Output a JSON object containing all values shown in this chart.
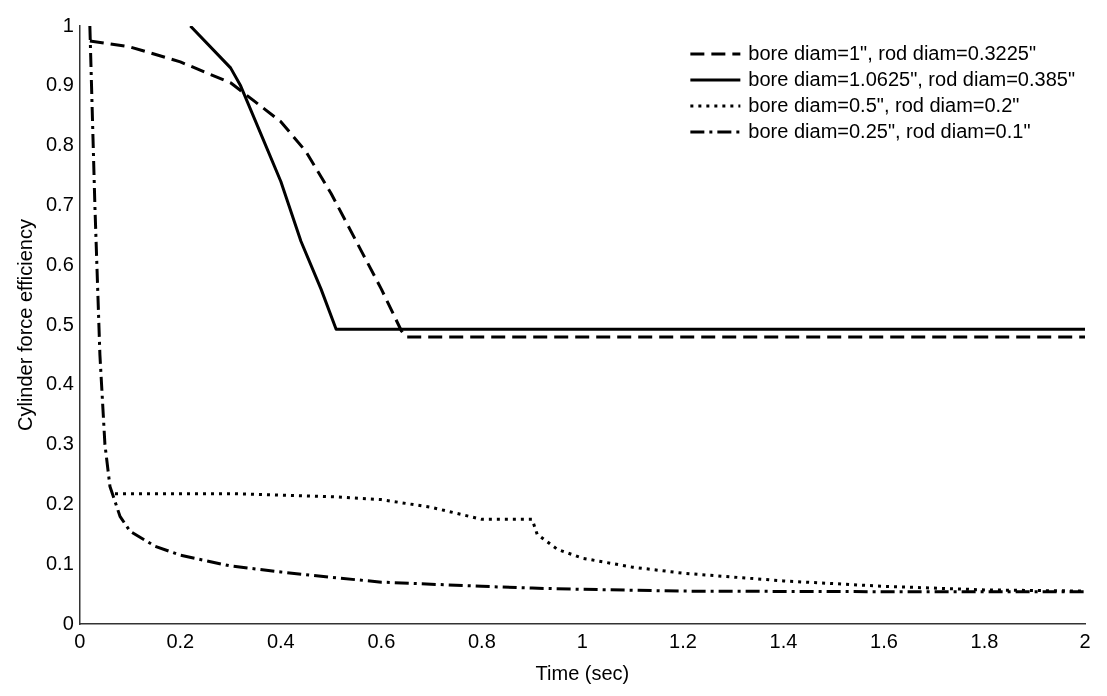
{
  "chart_data": {
    "type": "line",
    "xlabel": "Time (sec)",
    "ylabel": "Cylinder force efficiency",
    "xlim": [
      0,
      2
    ],
    "ylim": [
      0,
      1
    ],
    "xticks": [
      0,
      0.2,
      0.4,
      0.6,
      0.8,
      1,
      1.2,
      1.4,
      1.6,
      1.8,
      2
    ],
    "yticks": [
      0,
      0.1,
      0.2,
      0.3,
      0.4,
      0.5,
      0.6,
      0.7,
      0.8,
      0.9,
      1
    ],
    "grid": false,
    "legend": "top right",
    "marker": "none",
    "series": [
      {
        "name": "bore diam=1\", rod diam=0.3225\"",
        "color": "#000000",
        "line_style": "dashed",
        "x": [
          0.02,
          0.1,
          0.2,
          0.3,
          0.4,
          0.45,
          0.5,
          0.55,
          0.6,
          0.64,
          0.65,
          2
        ],
        "values": [
          0.975,
          0.965,
          0.94,
          0.905,
          0.84,
          0.79,
          0.72,
          0.64,
          0.56,
          0.49,
          0.48,
          0.48
        ]
      },
      {
        "name": "bore diam=1.0625\", rod diam=0.385\"",
        "color": "#000000",
        "line_style": "solid",
        "x": [
          0.22,
          0.3,
          0.32,
          0.36,
          0.4,
          0.44,
          0.48,
          0.51,
          2
        ],
        "values": [
          1.0,
          0.93,
          0.9,
          0.82,
          0.74,
          0.64,
          0.56,
          0.493,
          0.493
        ]
      },
      {
        "name": "bore diam=0.5\", rod diam=0.2\"",
        "color": "#000000",
        "line_style": "dotted",
        "x": [
          0.07,
          0.3,
          0.5,
          0.6,
          0.7,
          0.8,
          0.9,
          0.91,
          0.95,
          1.0,
          1.1,
          1.2,
          1.4,
          1.6,
          1.8,
          2.0
        ],
        "values": [
          0.218,
          0.218,
          0.213,
          0.208,
          0.195,
          0.175,
          0.175,
          0.15,
          0.125,
          0.11,
          0.095,
          0.085,
          0.072,
          0.063,
          0.057,
          0.055
        ]
      },
      {
        "name": "bore diam=0.25\", rod diam=0.1\"",
        "color": "#000000",
        "line_style": "dashdot",
        "x": [
          0.02,
          0.03,
          0.04,
          0.05,
          0.06,
          0.08,
          0.1,
          0.15,
          0.2,
          0.3,
          0.4,
          0.5,
          0.6,
          0.8,
          0.9,
          1.0,
          1.2,
          1.6,
          2.0
        ],
        "values": [
          1.0,
          0.7,
          0.45,
          0.3,
          0.23,
          0.18,
          0.155,
          0.13,
          0.115,
          0.097,
          0.087,
          0.078,
          0.07,
          0.063,
          0.06,
          0.058,
          0.055,
          0.054,
          0.054
        ]
      }
    ]
  }
}
